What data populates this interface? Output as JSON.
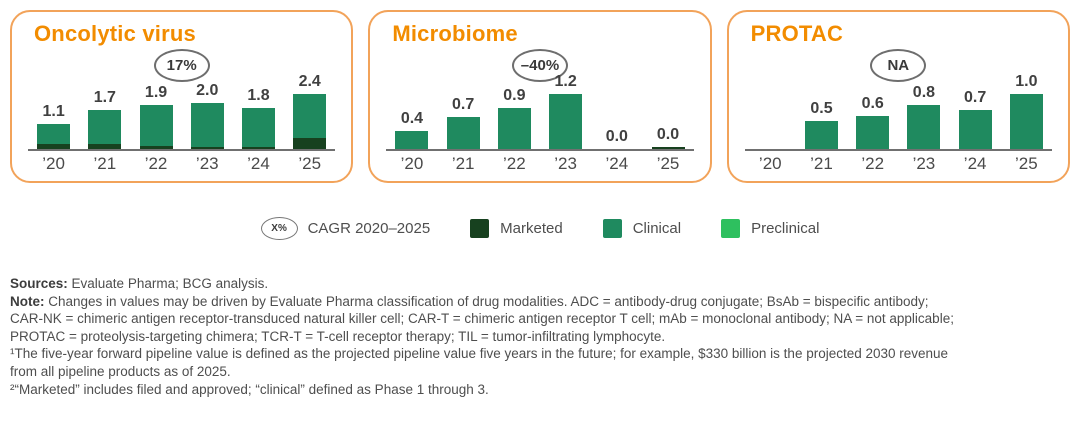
{
  "legend": {
    "cagr_symbol": "X%",
    "cagr_label": "CAGR 2020–2025",
    "items": [
      {
        "name": "Marketed",
        "color": "#17411F"
      },
      {
        "name": "Clinical",
        "color": "#1F8A5F"
      },
      {
        "name": "Preclinical",
        "color": "#2EC05F"
      }
    ]
  },
  "colors": {
    "panel_border": "#F2A35A",
    "panel_title": "#F28C00",
    "marketed": "#17411F",
    "clinical": "#1F8A5F",
    "preclinical": "#2EC05F",
    "axis": "#707070",
    "text": "#4E4E4E"
  },
  "chart_data": [
    {
      "type": "bar",
      "stacked": true,
      "title": "Oncolytic virus",
      "cagr": "17%",
      "categories": [
        "’20",
        "’21",
        "’22",
        "’23",
        "’24",
        "’25"
      ],
      "totals": [
        1.1,
        1.7,
        1.9,
        2.0,
        1.8,
        2.4
      ],
      "labels": [
        "1.1",
        "1.7",
        "1.9",
        "2.0",
        "1.8",
        "2.4"
      ],
      "series": [
        {
          "name": "Marketed",
          "values": [
            0.2,
            0.2,
            0.12,
            0.1,
            0.06,
            0.5
          ]
        },
        {
          "name": "Clinical",
          "values": [
            0.9,
            1.5,
            1.78,
            1.9,
            1.74,
            1.9
          ]
        },
        {
          "name": "Preclinical",
          "values": [
            0,
            0,
            0,
            0,
            0,
            0
          ]
        }
      ],
      "ylim": [
        0,
        2.6
      ],
      "grid": false,
      "legend_position": "bottom-shared"
    },
    {
      "type": "bar",
      "stacked": true,
      "title": "Microbiome",
      "cagr": "–40%",
      "categories": [
        "’20",
        "’21",
        "’22",
        "’23",
        "’24",
        "’25"
      ],
      "totals": [
        0.4,
        0.7,
        0.9,
        1.2,
        0.0,
        0.0
      ],
      "labels": [
        "0.4",
        "0.7",
        "0.9",
        "1.2",
        "0.0",
        "0.0"
      ],
      "series": [
        {
          "name": "Marketed",
          "values": [
            0,
            0,
            0,
            0,
            0,
            0.03
          ]
        },
        {
          "name": "Clinical",
          "values": [
            0.4,
            0.7,
            0.9,
            1.2,
            0,
            0
          ]
        },
        {
          "name": "Preclinical",
          "values": [
            0,
            0,
            0,
            0,
            0,
            0
          ]
        }
      ],
      "ylim": [
        0,
        1.3
      ],
      "grid": false,
      "legend_position": "bottom-shared"
    },
    {
      "type": "bar",
      "stacked": true,
      "title": "PROTAC",
      "cagr": "NA",
      "categories": [
        "’20",
        "’21",
        "’22",
        "’23",
        "’24",
        "’25"
      ],
      "totals": [
        null,
        0.5,
        0.6,
        0.8,
        0.7,
        1.0
      ],
      "labels": [
        "",
        "0.5",
        "0.6",
        "0.8",
        "0.7",
        "1.0"
      ],
      "series": [
        {
          "name": "Marketed",
          "values": [
            0,
            0,
            0,
            0,
            0,
            0
          ]
        },
        {
          "name": "Clinical",
          "values": [
            0,
            0.5,
            0.6,
            0.8,
            0.7,
            1.0
          ]
        },
        {
          "name": "Preclinical",
          "values": [
            0,
            0,
            0,
            0,
            0,
            0
          ]
        }
      ],
      "ylim": [
        0,
        1.1
      ],
      "grid": false,
      "legend_position": "bottom-shared"
    }
  ],
  "footnotes": {
    "lines": [
      {
        "bold": "Sources:",
        "text": " Evaluate Pharma; BCG analysis."
      },
      {
        "bold": "Note:",
        "text": " Changes in values may be driven by Evaluate Pharma classification of drug modalities. ADC = antibody-drug conjugate; BsAb = bispecific antibody;"
      },
      {
        "bold": "",
        "text": "CAR-NK = chimeric antigen receptor-transduced natural killer cell; CAR-T = chimeric antigen receptor T cell; mAb = monoclonal antibody; NA = not applicable;"
      },
      {
        "bold": "",
        "text": "PROTAC = proteolysis-targeting chimera; TCR-T = T-cell receptor therapy; TIL = tumor-infiltrating lymphocyte."
      },
      {
        "bold": "",
        "text": "¹The five-year forward pipeline value is defined as the projected pipeline value five years in the future; for example, $330 billion is the projected 2030 revenue"
      },
      {
        "bold": "",
        "text": "from all pipeline products as of 2025."
      },
      {
        "bold": "",
        "text": "²“Marketed” includes filed and approved; “clinical” defined as Phase 1 through 3."
      }
    ]
  }
}
